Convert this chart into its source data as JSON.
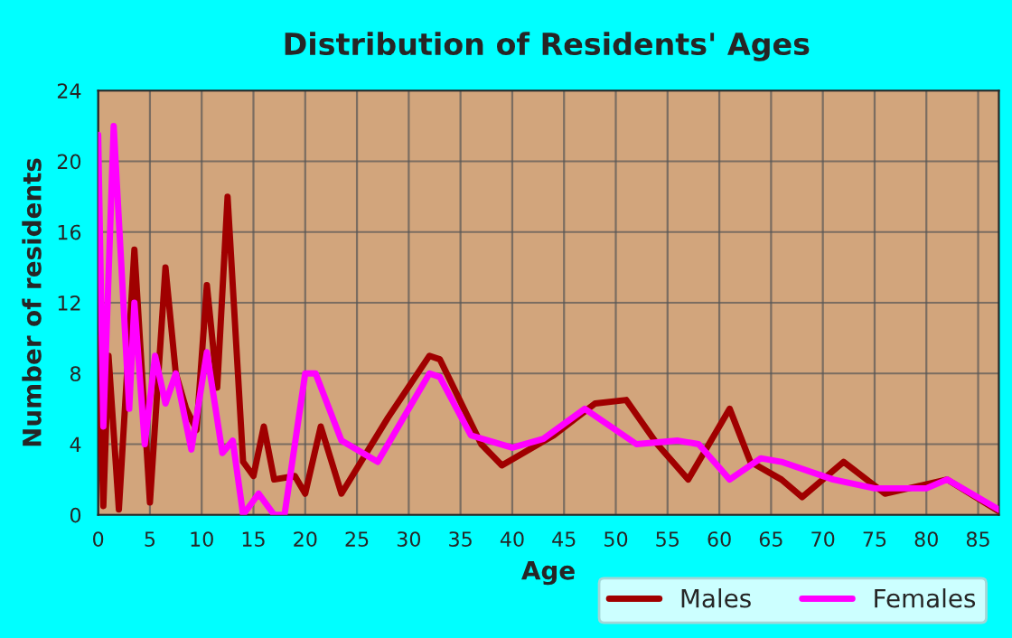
{
  "chart_data": {
    "type": "line",
    "title": "Distribution of Residents' Ages",
    "xlabel": "Age",
    "ylabel": "Number of residents",
    "series": [
      {
        "name": "Males",
        "color": "#a00000",
        "x": [
          0,
          0.5,
          1,
          2,
          3.5,
          5,
          6.5,
          7.5,
          8.5,
          9.5,
          10.5,
          11.5,
          12.5,
          14,
          15,
          16,
          17,
          19,
          20,
          21.5,
          23.5,
          28,
          32,
          33,
          37,
          39,
          44,
          48,
          51,
          54,
          57,
          61,
          63,
          66,
          68,
          72,
          76,
          82,
          87
        ],
        "values": [
          10,
          0.5,
          9,
          0.3,
          15,
          0.7,
          14,
          8,
          6,
          4.8,
          13,
          7.2,
          18,
          3,
          2.2,
          5,
          2,
          2.2,
          1.2,
          5,
          1.2,
          5.5,
          9,
          8.8,
          4,
          2.8,
          4.5,
          6.3,
          6.5,
          4,
          2,
          6,
          3,
          2,
          1,
          3,
          1.2,
          2,
          0.2
        ]
      },
      {
        "name": "Females",
        "color": "#ff00ff",
        "x": [
          0,
          0.5,
          1.5,
          3,
          3.5,
          4.5,
          5.5,
          6.5,
          7.5,
          9,
          10.5,
          12,
          13,
          14,
          15.5,
          17,
          18,
          20,
          21,
          23.5,
          27,
          32,
          33,
          36,
          40,
          43,
          47,
          52,
          56,
          58,
          61,
          64,
          66,
          71,
          75,
          80,
          82,
          87
        ],
        "values": [
          21.5,
          5,
          22,
          6,
          12,
          4,
          9,
          6.3,
          8,
          3.7,
          9.2,
          3.5,
          4.2,
          0,
          1.2,
          0,
          0,
          8,
          8,
          4.2,
          3,
          8,
          7.8,
          4.5,
          3.8,
          4.3,
          6,
          4,
          4.2,
          4,
          2,
          3.2,
          3,
          2,
          1.5,
          1.5,
          2,
          0.3
        ]
      }
    ],
    "xlim": [
      0,
      87
    ],
    "xticks": [
      0,
      5,
      10,
      15,
      20,
      25,
      30,
      35,
      40,
      45,
      50,
      55,
      60,
      65,
      70,
      75,
      80,
      85
    ],
    "ylim": [
      0,
      24
    ],
    "yticks": [
      0,
      4,
      8,
      12,
      16,
      20,
      24
    ],
    "grid": true,
    "legend": "bottom",
    "marker": "none",
    "line_style": "solid"
  }
}
